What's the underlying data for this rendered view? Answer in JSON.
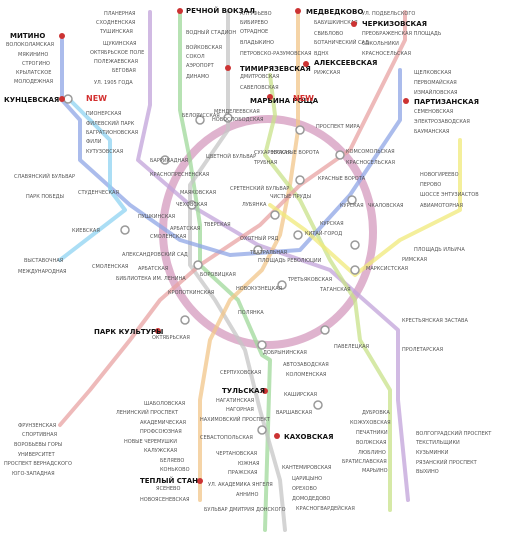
{
  "badges": {
    "new_left": "NEW",
    "new_right": "NEW"
  },
  "colors": {
    "red": "#e8a3a3",
    "green": "#9fd89a",
    "blue": "#8fa6e6",
    "lightblue": "#8fd3f2",
    "brown": "#d9a6c6",
    "orange": "#f2c58a",
    "violet": "#c2a3d9",
    "yellow": "#f0ea7a",
    "grey": "#c6c6c6",
    "lime": "#c8e28a",
    "terminal": "#c62828"
  },
  "stations": [
    {
      "t": "ПЛАНЕРНАЯ"
    },
    {
      "t": "СХОДНЕНСКАЯ"
    },
    {
      "t": "ТУШИНСКАЯ"
    },
    {
      "t": "ЩУКИНСКАЯ"
    },
    {
      "t": "ОКТЯБРЬСКОЕ ПОЛЕ"
    },
    {
      "t": "ПОЛЕЖАЕВСКАЯ"
    },
    {
      "t": "БЕГОВАЯ"
    },
    {
      "t": "УЛ. 1905 ГОДА"
    },
    {
      "t": "ВОДНЫЙ СТАДИОН"
    },
    {
      "t": "ВОЙКОВСКАЯ"
    },
    {
      "t": "СОКОЛ"
    },
    {
      "t": "АЭРОПОРТ"
    },
    {
      "t": "ДИНАМО"
    },
    {
      "t": "АЛТУФЬЕВО"
    },
    {
      "t": "БИБИРЕВО"
    },
    {
      "t": "ОТРАДНОЕ"
    },
    {
      "t": "ВЛАДЫКИНО"
    },
    {
      "t": "ПЕТРОВСКО-РАЗУМОВСКАЯ"
    },
    {
      "t": "ДМИТРОВСКАЯ"
    },
    {
      "t": "САВЕЛОВСКАЯ"
    },
    {
      "t": "БАБУШКИНСКАЯ"
    },
    {
      "t": "СВИБЛОВО"
    },
    {
      "t": "БОТАНИЧЕСКИЙ САД"
    },
    {
      "t": "ВДНХ"
    },
    {
      "t": "РИЖСКАЯ"
    },
    {
      "t": "УЛ. ПОДБЕЛЬСКОГО"
    },
    {
      "t": "ПРЕОБРАЖЕНСКАЯ ПЛОЩАДЬ"
    },
    {
      "t": "СОКОЛЬНИКИ"
    },
    {
      "t": "КРАСНОСЕЛЬСКАЯ"
    },
    {
      "t": "ЩЕЛКОВСКАЯ"
    },
    {
      "t": "ПЕРВОМАЙСКАЯ"
    },
    {
      "t": "ИЗМАЙЛОВСКАЯ"
    },
    {
      "t": "СЕМЕНОВСКАЯ"
    },
    {
      "t": "ЭЛЕКТРОЗАВОДСКАЯ"
    },
    {
      "t": "БАУМАНСКАЯ"
    },
    {
      "t": "ВОЛОКОЛАМСКАЯ"
    },
    {
      "t": "МЯКИНИНО"
    },
    {
      "t": "СТРОГИНО"
    },
    {
      "t": "КРЫЛАТСКОЕ"
    },
    {
      "t": "МОЛОДЕЖНАЯ"
    },
    {
      "t": "ПИОНЕРСКАЯ"
    },
    {
      "t": "ФИЛЕВСКИЙ ПАРК"
    },
    {
      "t": "БАГРАТИОНОВСКАЯ"
    },
    {
      "t": "ФИЛИ"
    },
    {
      "t": "КУТУЗОВСКАЯ"
    },
    {
      "t": "БЕЛОРУССКАЯ"
    },
    {
      "t": "НОВОСЛОБОДСКАЯ"
    },
    {
      "t": "МЕНДЕЛЕЕВСКАЯ"
    },
    {
      "t": "ПРОСПЕКТ МИРА"
    },
    {
      "t": "КОМСОМОЛЬСКАЯ"
    },
    {
      "t": "КРАСНОСЕЛЬСКАЯ"
    },
    {
      "t": "БАРРИКАДНАЯ"
    },
    {
      "t": "КРАСНОПРЕСНЕНСКАЯ"
    },
    {
      "t": "ЦВЕТНОЙ БУЛЬВАР"
    },
    {
      "t": "ТРУБНАЯ"
    },
    {
      "t": "СУХАРЕВСКАЯ"
    },
    {
      "t": "КРАСНЫЕ ВОРОТА"
    },
    {
      "t": "СРЕТЕНСКИЙ БУЛЬВАР"
    },
    {
      "t": "ЧИСТЫЕ ПРУДЫ"
    },
    {
      "t": "КРАСНЫЕ ВОРОТА"
    },
    {
      "t": "КУРСКАЯ"
    },
    {
      "t": "ЧКАЛОВСКАЯ"
    },
    {
      "t": "СЛАВЯНСКИЙ БУЛЬВАР"
    },
    {
      "t": "ПАРК ПОБЕДЫ"
    },
    {
      "t": "СТУДЕНЧЕСКАЯ"
    },
    {
      "t": "КИЕВСКАЯ"
    },
    {
      "t": "ПУШКИНСКАЯ"
    },
    {
      "t": "МАЯКОВСКАЯ"
    },
    {
      "t": "ЧЕХОВСКАЯ"
    },
    {
      "t": "ТВЕРСКАЯ"
    },
    {
      "t": "ЛУБЯНКА"
    },
    {
      "t": "СМОЛЕНСКАЯ"
    },
    {
      "t": "АРБАТСКАЯ"
    },
    {
      "t": "ВЫСТАВОЧНАЯ"
    },
    {
      "t": "МЕЖДУНАРОДНАЯ"
    },
    {
      "t": "СМОЛЕНСКАЯ"
    },
    {
      "t": "АЛЕКСАНДРОВСКИЙ САД"
    },
    {
      "t": "АРБАТСКАЯ"
    },
    {
      "t": "БИБЛИОТЕКА ИМ. ЛЕНИНА"
    },
    {
      "t": "БОРОВИЦКАЯ"
    },
    {
      "t": "КРОПОТКИНСКАЯ"
    },
    {
      "t": "ОХОТНЫЙ РЯД"
    },
    {
      "t": "ТЕАТРАЛЬНАЯ"
    },
    {
      "t": "ПЛОЩАДЬ РЕВОЛЮЦИИ"
    },
    {
      "t": "КИТАЙ-ГОРОД"
    },
    {
      "t": "КУРСКАЯ"
    },
    {
      "t": "НОВОГИРЕЕВО"
    },
    {
      "t": "ПЕРОВО"
    },
    {
      "t": "ШОССЕ ЭНТУЗИАСТОВ"
    },
    {
      "t": "АВИАМОТОРНАЯ"
    },
    {
      "t": "ПЛОЩАДЬ ИЛЬИЧА"
    },
    {
      "t": "РИМСКАЯ"
    },
    {
      "t": "МАРКСИСТСКАЯ"
    },
    {
      "t": "ТАГАНСКАЯ"
    },
    {
      "t": "ТРЕТЬЯКОВСКАЯ"
    },
    {
      "t": "НОВОКУЗНЕЦКАЯ"
    },
    {
      "t": "ПОЛЯНКА"
    },
    {
      "t": "ОКТЯБРЬСКАЯ"
    },
    {
      "t": "ДОБРЫНИНСКАЯ"
    },
    {
      "t": "СЕРПУХОВСКАЯ"
    },
    {
      "t": "ПАВЕЛЕЦКАЯ"
    },
    {
      "t": "КРЕСТЬЯНСКАЯ ЗАСТАВА"
    },
    {
      "t": "ПРОЛЕТАРСКАЯ"
    },
    {
      "t": "ШАБОЛОВСКАЯ"
    },
    {
      "t": "ЛЕНИНСКИЙ ПРОСПЕКТ"
    },
    {
      "t": "АКАДЕМИЧЕСКАЯ"
    },
    {
      "t": "ПРОФСОЮЗНАЯ"
    },
    {
      "t": "НОВЫЕ ЧЕРЕМУШКИ"
    },
    {
      "t": "КАЛУЖСКАЯ"
    },
    {
      "t": "БЕЛЯЕВО"
    },
    {
      "t": "КОНЬКОВО"
    },
    {
      "t": "ЯСЕНЕВО"
    },
    {
      "t": "НОВОЯСЕНЕВСКАЯ"
    },
    {
      "t": "ФРУНЗЕНСКАЯ"
    },
    {
      "t": "СПОРТИВНАЯ"
    },
    {
      "t": "ВОРОБЬЕВЫ ГОРЫ"
    },
    {
      "t": "УНИВЕРСИТЕТ"
    },
    {
      "t": "ПРОСПЕКТ ВЕРНАДСКОГО"
    },
    {
      "t": "ЮГО-ЗАПАДНАЯ"
    },
    {
      "t": "АВТОЗАВОДСКАЯ"
    },
    {
      "t": "КОЛОМЕНСКАЯ"
    },
    {
      "t": "КАШИРСКАЯ"
    },
    {
      "t": "ВАРШАВСКАЯ"
    },
    {
      "t": "НАГАТИНСКАЯ"
    },
    {
      "t": "НАГОРНАЯ"
    },
    {
      "t": "НАХИМОВСКИЙ ПРОСПЕКТ"
    },
    {
      "t": "СЕВАСТОПОЛЬСКАЯ"
    },
    {
      "t": "ЧЕРТАНОВСКАЯ"
    },
    {
      "t": "ЮЖНАЯ"
    },
    {
      "t": "ПРАЖСКАЯ"
    },
    {
      "t": "УЛ. АКАДЕМИКА ЯНГЕЛЯ"
    },
    {
      "t": "АННИНО"
    },
    {
      "t": "БУЛЬВАР ДМИТРИЯ ДОНСКОГО"
    },
    {
      "t": "КАНТЕМИРОВСКАЯ"
    },
    {
      "t": "ЦАРИЦЫНО"
    },
    {
      "t": "ОРЕХОВО"
    },
    {
      "t": "ДОМОДЕДОВО"
    },
    {
      "t": "КРАСНОГВАРДЕЙСКАЯ"
    },
    {
      "t": "ДУБРОВКА"
    },
    {
      "t": "КОЖУХОВСКАЯ"
    },
    {
      "t": "ПЕЧАТНИКИ"
    },
    {
      "t": "ВОЛЖСКАЯ"
    },
    {
      "t": "ЛЮБЛИНО"
    },
    {
      "t": "БРАТИСЛАВСКАЯ"
    },
    {
      "t": "МАРЬИНО"
    },
    {
      "t": "ВОЛГОГРАДСКИЙ ПРОСПЕКТ"
    },
    {
      "t": "ТЕКСТИЛЬЩИКИ"
    },
    {
      "t": "КУЗЬМИНКИ"
    },
    {
      "t": "РЯЗАНСКИЙ ПРОСПЕКТ"
    },
    {
      "t": "ВЫХИНО"
    }
  ],
  "terminals": [
    {
      "t": "МИТИНО"
    },
    {
      "t": "КУНЦЕВСКАЯ"
    },
    {
      "t": "РЕЧНОЙ ВОКЗАЛ"
    },
    {
      "t": "МЕДВЕДКОВО"
    },
    {
      "t": "ЧЕРКИЗОВСКАЯ"
    },
    {
      "t": "ТИМИРЯЗЕВСКАЯ"
    },
    {
      "t": "МАРЬИНА РОЩА"
    },
    {
      "t": "АЛЕКСЕЕВСКАЯ"
    },
    {
      "t": "ПАРТИЗАНСКАЯ"
    },
    {
      "t": "ПАРК КУЛЬТУРЫ"
    },
    {
      "t": "ТУЛЬСКАЯ"
    },
    {
      "t": "КАХОВСКАЯ"
    },
    {
      "t": "ТЕПЛЫЙ СТАН"
    }
  ]
}
